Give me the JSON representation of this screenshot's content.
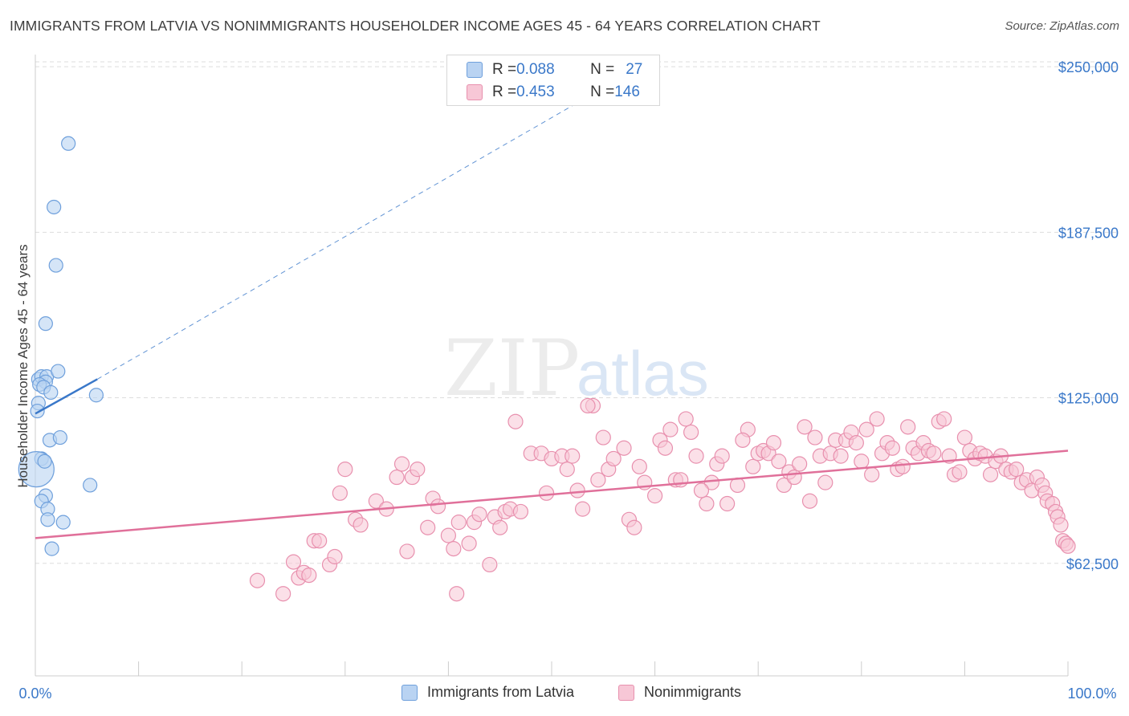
{
  "title": "IMMIGRANTS FROM LATVIA VS NONIMMIGRANTS HOUSEHOLDER INCOME AGES 45 - 64 YEARS CORRELATION CHART",
  "source": "Source: ZipAtlas.com",
  "watermark": {
    "zip": "ZIP",
    "atlas": "atlas"
  },
  "colors": {
    "blue": "#3a78c9",
    "blue_fill": "#b9d3f2",
    "blue_stroke": "#6fa0dc",
    "pink": "#e0709a",
    "pink_fill": "#f7c7d6",
    "pink_stroke": "#e890ae",
    "grid": "#dddddd",
    "tick_label": "#3a78c9",
    "text": "#3d3d3d"
  },
  "legend": {
    "rows": [
      {
        "r_label": "R = ",
        "r_value": "0.088",
        "n_label": "N = ",
        "n_value": "27"
      },
      {
        "r_label": "R = ",
        "r_value": "0.453",
        "n_label": "N = ",
        "n_value": "146"
      }
    ]
  },
  "chart_data": {
    "type": "scatter",
    "title": "IMMIGRANTS FROM LATVIA VS NONIMMIGRANTS HOUSEHOLDER INCOME AGES 45 - 64 YEARS CORRELATION CHART",
    "xlabel": "",
    "ylabel": "Householder Income Ages 45 - 64 years",
    "xlim": [
      0,
      100
    ],
    "ylim": [
      20000,
      257000
    ],
    "x_tick_labels": [
      "0.0%",
      "100.0%"
    ],
    "y_ticks": [
      62500,
      125000,
      187500,
      250000
    ],
    "y_tick_labels": [
      "$62,500",
      "$125,000",
      "$187,500",
      "$250,000"
    ],
    "grid": true,
    "legend_position": "bottom",
    "series": [
      {
        "name": "Immigrants from Latvia",
        "r": 0.088,
        "n": 27,
        "trend": {
          "x0": 0,
          "y0": 119000,
          "x1": 6,
          "y1": 132000,
          "dashed_to_x": 55,
          "dashed_to_y": 242000
        },
        "points": [
          {
            "x": 3.2,
            "y": 221000
          },
          {
            "x": 1.8,
            "y": 197000
          },
          {
            "x": 2.0,
            "y": 175000
          },
          {
            "x": 1.0,
            "y": 153000
          },
          {
            "x": 0.3,
            "y": 132000
          },
          {
            "x": 0.6,
            "y": 133000
          },
          {
            "x": 1.1,
            "y": 133000
          },
          {
            "x": 2.2,
            "y": 135000
          },
          {
            "x": 1.0,
            "y": 131000
          },
          {
            "x": 0.4,
            "y": 130000
          },
          {
            "x": 0.8,
            "y": 129000
          },
          {
            "x": 1.5,
            "y": 127000
          },
          {
            "x": 5.9,
            "y": 126000
          },
          {
            "x": 0.3,
            "y": 123000
          },
          {
            "x": 0.2,
            "y": 120000
          },
          {
            "x": 1.4,
            "y": 109000
          },
          {
            "x": 2.4,
            "y": 110000
          },
          {
            "x": 0.6,
            "y": 102000
          },
          {
            "x": 0.1,
            "y": 98000,
            "big": true
          },
          {
            "x": 5.3,
            "y": 92000
          },
          {
            "x": 1.0,
            "y": 88000
          },
          {
            "x": 0.6,
            "y": 86000
          },
          {
            "x": 1.2,
            "y": 83000
          },
          {
            "x": 1.2,
            "y": 79000
          },
          {
            "x": 2.7,
            "y": 78000
          },
          {
            "x": 1.6,
            "y": 68000
          },
          {
            "x": 0.9,
            "y": 101000
          }
        ]
      },
      {
        "name": "Nonimmigrants",
        "r": 0.453,
        "n": 146,
        "trend": {
          "x0": 0,
          "y0": 72000,
          "x1": 100,
          "y1": 105000
        },
        "points": [
          {
            "x": 21.5,
            "y": 56000
          },
          {
            "x": 24.0,
            "y": 51000
          },
          {
            "x": 25.0,
            "y": 63000
          },
          {
            "x": 25.5,
            "y": 57000
          },
          {
            "x": 26.0,
            "y": 59000
          },
          {
            "x": 26.5,
            "y": 58000
          },
          {
            "x": 27.0,
            "y": 71000
          },
          {
            "x": 27.5,
            "y": 71000
          },
          {
            "x": 28.5,
            "y": 62000
          },
          {
            "x": 29.0,
            "y": 65000
          },
          {
            "x": 29.5,
            "y": 89000
          },
          {
            "x": 30.0,
            "y": 98000
          },
          {
            "x": 31.0,
            "y": 79000
          },
          {
            "x": 31.5,
            "y": 77000
          },
          {
            "x": 33.0,
            "y": 86000
          },
          {
            "x": 34.0,
            "y": 83000
          },
          {
            "x": 35.0,
            "y": 95000
          },
          {
            "x": 35.5,
            "y": 100000
          },
          {
            "x": 36.0,
            "y": 67000
          },
          {
            "x": 36.5,
            "y": 95000
          },
          {
            "x": 37.0,
            "y": 98000
          },
          {
            "x": 38.0,
            "y": 76000
          },
          {
            "x": 38.5,
            "y": 87000
          },
          {
            "x": 39.0,
            "y": 84000
          },
          {
            "x": 40.0,
            "y": 73000
          },
          {
            "x": 40.5,
            "y": 68000
          },
          {
            "x": 41.0,
            "y": 78000
          },
          {
            "x": 40.8,
            "y": 51000
          },
          {
            "x": 42.0,
            "y": 70000
          },
          {
            "x": 42.5,
            "y": 78000
          },
          {
            "x": 43.0,
            "y": 81000
          },
          {
            "x": 44.0,
            "y": 62000
          },
          {
            "x": 44.5,
            "y": 80000
          },
          {
            "x": 45.0,
            "y": 76000
          },
          {
            "x": 45.5,
            "y": 82000
          },
          {
            "x": 46.0,
            "y": 83000
          },
          {
            "x": 46.5,
            "y": 116000
          },
          {
            "x": 47.0,
            "y": 82000
          },
          {
            "x": 48.0,
            "y": 104000
          },
          {
            "x": 49.0,
            "y": 104000
          },
          {
            "x": 49.5,
            "y": 89000
          },
          {
            "x": 50.0,
            "y": 102000
          },
          {
            "x": 51.0,
            "y": 103000
          },
          {
            "x": 51.5,
            "y": 98000
          },
          {
            "x": 52.0,
            "y": 103000
          },
          {
            "x": 52.5,
            "y": 90000
          },
          {
            "x": 53.0,
            "y": 83000
          },
          {
            "x": 54.0,
            "y": 122000
          },
          {
            "x": 55.0,
            "y": 110000
          },
          {
            "x": 55.5,
            "y": 98000
          },
          {
            "x": 56.0,
            "y": 102000
          },
          {
            "x": 57.0,
            "y": 106000
          },
          {
            "x": 57.5,
            "y": 79000
          },
          {
            "x": 58.0,
            "y": 76000
          },
          {
            "x": 58.5,
            "y": 99000
          },
          {
            "x": 59.0,
            "y": 93000
          },
          {
            "x": 60.0,
            "y": 88000
          },
          {
            "x": 60.5,
            "y": 109000
          },
          {
            "x": 61.0,
            "y": 106000
          },
          {
            "x": 61.5,
            "y": 113000
          },
          {
            "x": 62.0,
            "y": 94000
          },
          {
            "x": 62.5,
            "y": 94000
          },
          {
            "x": 63.0,
            "y": 117000
          },
          {
            "x": 63.5,
            "y": 112000
          },
          {
            "x": 64.0,
            "y": 103000
          },
          {
            "x": 65.0,
            "y": 85000
          },
          {
            "x": 65.5,
            "y": 93000
          },
          {
            "x": 66.0,
            "y": 100000
          },
          {
            "x": 66.5,
            "y": 103000
          },
          {
            "x": 67.0,
            "y": 85000
          },
          {
            "x": 68.0,
            "y": 92000
          },
          {
            "x": 69.0,
            "y": 113000
          },
          {
            "x": 69.5,
            "y": 99000
          },
          {
            "x": 70.0,
            "y": 104000
          },
          {
            "x": 70.5,
            "y": 105000
          },
          {
            "x": 71.0,
            "y": 104000
          },
          {
            "x": 71.5,
            "y": 108000
          },
          {
            "x": 72.0,
            "y": 101000
          },
          {
            "x": 72.5,
            "y": 92000
          },
          {
            "x": 73.0,
            "y": 97000
          },
          {
            "x": 73.5,
            "y": 95000
          },
          {
            "x": 74.0,
            "y": 100000
          },
          {
            "x": 74.5,
            "y": 114000
          },
          {
            "x": 75.0,
            "y": 86000
          },
          {
            "x": 75.5,
            "y": 110000
          },
          {
            "x": 76.0,
            "y": 103000
          },
          {
            "x": 76.5,
            "y": 93000
          },
          {
            "x": 77.0,
            "y": 104000
          },
          {
            "x": 77.5,
            "y": 109000
          },
          {
            "x": 78.0,
            "y": 103000
          },
          {
            "x": 78.5,
            "y": 109000
          },
          {
            "x": 79.0,
            "y": 112000
          },
          {
            "x": 79.5,
            "y": 108000
          },
          {
            "x": 80.0,
            "y": 101000
          },
          {
            "x": 80.5,
            "y": 113000
          },
          {
            "x": 81.0,
            "y": 96000
          },
          {
            "x": 81.5,
            "y": 117000
          },
          {
            "x": 82.0,
            "y": 104000
          },
          {
            "x": 82.5,
            "y": 108000
          },
          {
            "x": 83.0,
            "y": 106000
          },
          {
            "x": 83.5,
            "y": 98000
          },
          {
            "x": 84.0,
            "y": 99000
          },
          {
            "x": 84.5,
            "y": 114000
          },
          {
            "x": 85.0,
            "y": 106000
          },
          {
            "x": 85.5,
            "y": 104000
          },
          {
            "x": 86.0,
            "y": 108000
          },
          {
            "x": 86.5,
            "y": 105000
          },
          {
            "x": 87.0,
            "y": 104000
          },
          {
            "x": 87.5,
            "y": 116000
          },
          {
            "x": 88.0,
            "y": 117000
          },
          {
            "x": 88.5,
            "y": 103000
          },
          {
            "x": 89.0,
            "y": 96000
          },
          {
            "x": 89.5,
            "y": 97000
          },
          {
            "x": 90.0,
            "y": 110000
          },
          {
            "x": 90.5,
            "y": 105000
          },
          {
            "x": 91.0,
            "y": 102000
          },
          {
            "x": 91.5,
            "y": 104000
          },
          {
            "x": 92.0,
            "y": 103000
          },
          {
            "x": 92.5,
            "y": 96000
          },
          {
            "x": 93.0,
            "y": 101000
          },
          {
            "x": 93.5,
            "y": 103000
          },
          {
            "x": 94.0,
            "y": 98000
          },
          {
            "x": 94.5,
            "y": 97000
          },
          {
            "x": 95.0,
            "y": 98000
          },
          {
            "x": 95.5,
            "y": 93000
          },
          {
            "x": 96.0,
            "y": 94000
          },
          {
            "x": 96.5,
            "y": 90000
          },
          {
            "x": 97.0,
            "y": 95000
          },
          {
            "x": 97.5,
            "y": 92000
          },
          {
            "x": 97.8,
            "y": 89000
          },
          {
            "x": 98.0,
            "y": 86000
          },
          {
            "x": 98.5,
            "y": 85000
          },
          {
            "x": 98.8,
            "y": 82000
          },
          {
            "x": 99.0,
            "y": 80000
          },
          {
            "x": 99.3,
            "y": 77000
          },
          {
            "x": 99.5,
            "y": 71000
          },
          {
            "x": 99.8,
            "y": 70000
          },
          {
            "x": 100.0,
            "y": 69000
          },
          {
            "x": 68.5,
            "y": 109000
          },
          {
            "x": 64.5,
            "y": 90000
          },
          {
            "x": 54.5,
            "y": 94000
          },
          {
            "x": 53.5,
            "y": 122000
          }
        ]
      }
    ]
  },
  "bottom_legend": [
    {
      "label": "Immigrants from Latvia"
    },
    {
      "label": "Nonimmigrants"
    }
  ]
}
